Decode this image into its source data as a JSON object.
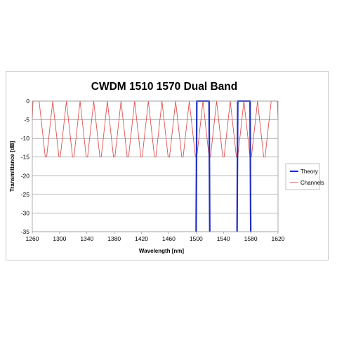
{
  "chart_data": {
    "type": "line",
    "title": "CWDM 1510 1570 Dual Band",
    "xlabel": "Wavelength [nm]",
    "ylabel": "Transmittance [dB]",
    "xlim": [
      1260,
      1620
    ],
    "ylim": [
      -35,
      0
    ],
    "xticks": [
      1260,
      1300,
      1340,
      1380,
      1420,
      1460,
      1500,
      1540,
      1580,
      1620
    ],
    "yticks": [
      0,
      -5,
      -10,
      -15,
      -20,
      -25,
      -30,
      -35
    ],
    "grid": "horizontal",
    "legend_position": "right",
    "series": [
      {
        "name": "Theory",
        "color": "#1f2fc8",
        "x": [
          1500,
          1501,
          1503,
          1517,
          1519,
          1520,
          null,
          1560,
          1561,
          1563,
          1577,
          1579,
          1580
        ],
        "y": [
          -35,
          0,
          0,
          0,
          0,
          -35,
          null,
          -35,
          0,
          0,
          0,
          0,
          -35
        ]
      },
      {
        "name": "Channels",
        "color": "#e05050",
        "x": [
          1260,
          1261,
          1270,
          1279,
          1281,
          1290,
          1299,
          1301,
          1310,
          1319,
          1321,
          1330,
          1339,
          1341,
          1350,
          1359,
          1361,
          1370,
          1379,
          1381,
          1390,
          1399,
          1401,
          1410,
          1419,
          1421,
          1430,
          1439,
          1441,
          1450,
          1459,
          1461,
          1470,
          1479,
          1481,
          1490,
          1499,
          1501,
          1510,
          1519,
          1521,
          1530,
          1539,
          1541,
          1550,
          1559,
          1561,
          1570,
          1579,
          1581,
          1590,
          1599,
          1601,
          1610,
          1619,
          1620
        ],
        "y": [
          -5,
          0,
          0,
          -15,
          -15,
          0,
          -15,
          -15,
          0,
          -15,
          -15,
          0,
          -15,
          -15,
          0,
          -15,
          -15,
          0,
          -15,
          -15,
          0,
          -15,
          -15,
          0,
          -15,
          -15,
          0,
          -15,
          -15,
          0,
          -15,
          -15,
          0,
          -15,
          -15,
          0,
          -15,
          -15,
          0,
          -15,
          -15,
          0,
          -15,
          -15,
          0,
          -15,
          -15,
          0,
          -15,
          -15,
          0,
          -15,
          -15,
          0,
          0,
          -5
        ]
      }
    ]
  }
}
